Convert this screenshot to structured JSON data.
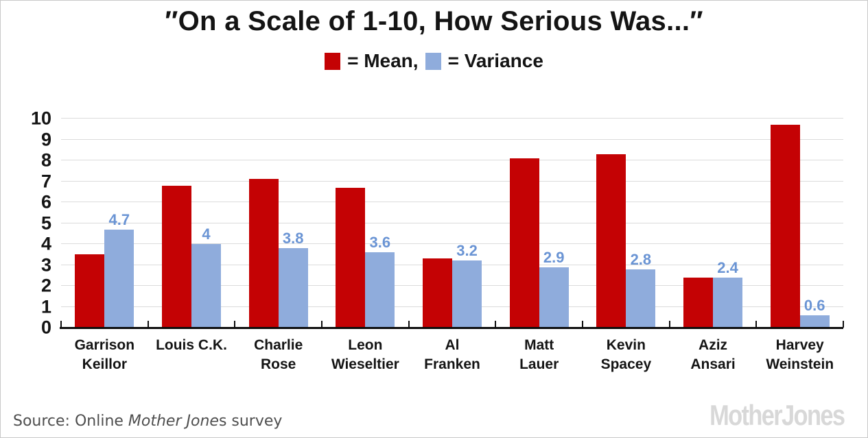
{
  "header": {
    "title": "″On a Scale of 1-10, How Serious Was...″"
  },
  "legend": {
    "mean_label": "= Mean,",
    "variance_label": "= Variance"
  },
  "chart_data": {
    "type": "bar",
    "title": "″On a Scale of 1-10, How Serious Was...″",
    "categories": [
      "Garrison Keillor",
      "Louis C.K.",
      "Charlie Rose",
      "Leon Wieseltier",
      "Al Franken",
      "Matt Lauer",
      "Kevin Spacey",
      "Aziz Ansari",
      "Harvey Weinstein"
    ],
    "categories_lines": [
      [
        "Garrison",
        "Keillor"
      ],
      [
        "Louis C.K."
      ],
      [
        "Charlie",
        "Rose"
      ],
      [
        "Leon",
        "Wieseltier"
      ],
      [
        "Al",
        "Franken"
      ],
      [
        "Matt",
        "Lauer"
      ],
      [
        "Kevin",
        "Spacey"
      ],
      [
        "Aziz",
        "Ansari"
      ],
      [
        "Harvey",
        "Weinstein"
      ]
    ],
    "series": [
      {
        "name": "Mean",
        "color": "#C40204",
        "values": [
          3.5,
          6.8,
          7.1,
          6.7,
          3.3,
          8.1,
          8.3,
          2.4,
          9.7
        ]
      },
      {
        "name": "Variance",
        "color": "#8FACDC",
        "label_color": "#6A94D4",
        "values": [
          4.7,
          4,
          3.8,
          3.6,
          3.2,
          2.9,
          2.8,
          2.4,
          0.6
        ],
        "value_labels": [
          "4.7",
          "4",
          "3.8",
          "3.6",
          "3.2",
          "2.9",
          "2.8",
          "2.4",
          "0.6"
        ]
      }
    ],
    "ylim": [
      0,
      10
    ],
    "yticks": [
      0,
      1,
      2,
      3,
      4,
      5,
      6,
      7,
      8,
      9,
      10
    ],
    "grid": true,
    "legend_position": "top",
    "xlabel": "",
    "ylabel": ""
  },
  "footer": {
    "source_prefix": "Source: Online ",
    "source_italic": "Mother Jone",
    "source_suffix": "s survey",
    "logo_text": "MotherJones"
  },
  "colors": {
    "mean": "#C40204",
    "variance": "#8FACDC",
    "variance_label": "#6A94D4",
    "gridline": "#DBDBDB",
    "axis": "#0D0D0D",
    "title_text": "#141414",
    "source_text": "#4E4E4E",
    "logo_gray": "#D8D8D8",
    "border": "#C9C9C9"
  }
}
